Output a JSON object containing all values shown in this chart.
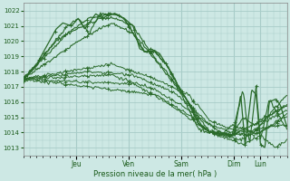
{
  "bg_color": "#cde8e4",
  "grid_color": "#a8ccc8",
  "line_color": "#2a6a2a",
  "marker_color": "#2a6a2a",
  "xlabel": "Pression niveau de la mer( hPa )",
  "xlabel_color": "#1a5a1a",
  "tick_color": "#1a5a1a",
  "ylim": [
    1012.5,
    1022.5
  ],
  "yticks": [
    1013,
    1014,
    1015,
    1016,
    1017,
    1018,
    1019,
    1020,
    1021,
    1022
  ],
  "day_labels": [
    "Jeu",
    "Ven",
    "Sam",
    "Dim",
    "Lun"
  ],
  "day_positions": [
    24,
    48,
    72,
    96,
    108
  ],
  "xlim": [
    0,
    120
  ]
}
